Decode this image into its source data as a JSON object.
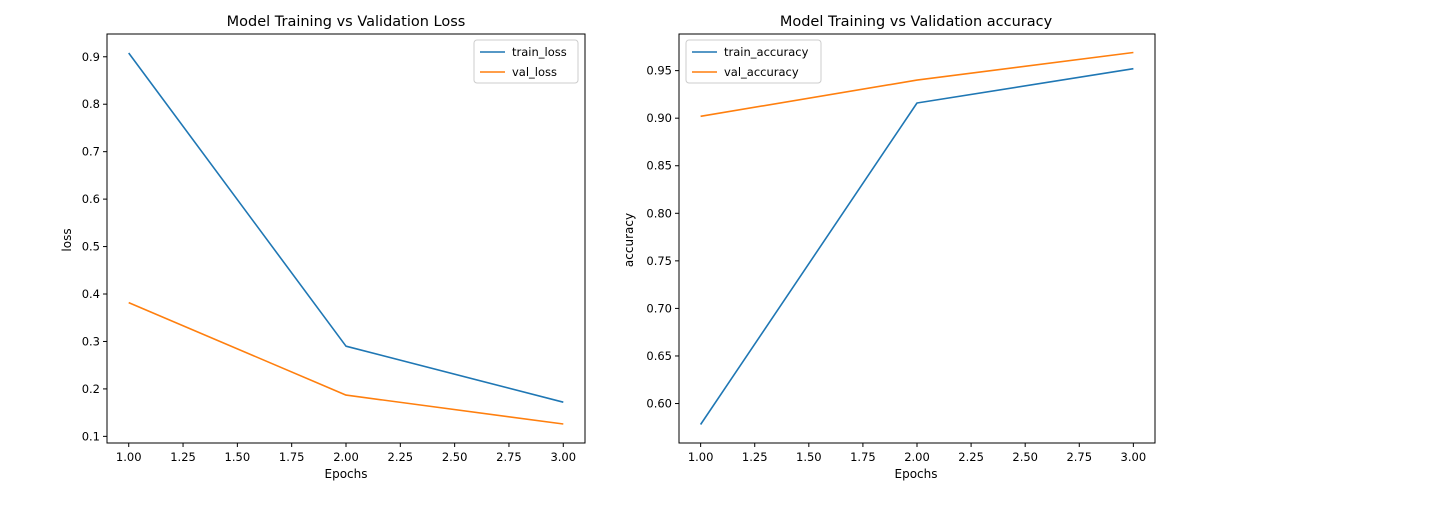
{
  "chart_data": [
    {
      "type": "line",
      "title": "Model Training vs Validation Loss",
      "xlabel": "Epochs",
      "ylabel": "loss",
      "x": [
        1.0,
        2.0,
        3.0
      ],
      "series": [
        {
          "name": "train_loss",
          "color": "#1f77b4",
          "values": [
            0.908,
            0.29,
            0.172
          ]
        },
        {
          "name": "val_loss",
          "color": "#ff7f0e",
          "values": [
            0.382,
            0.187,
            0.126
          ]
        }
      ],
      "xlim": [
        0.9,
        3.1
      ],
      "ylim": [
        0.086,
        0.948
      ],
      "xticks": [
        1.0,
        1.25,
        1.5,
        1.75,
        2.0,
        2.25,
        2.5,
        2.75,
        3.0
      ],
      "xtick_labels": [
        "1.00",
        "1.25",
        "1.50",
        "1.75",
        "2.00",
        "2.25",
        "2.50",
        "2.75",
        "3.00"
      ],
      "yticks": [
        0.1,
        0.2,
        0.3,
        0.4,
        0.5,
        0.6,
        0.7,
        0.8,
        0.9
      ],
      "ytick_labels": [
        "0.1",
        "0.2",
        "0.3",
        "0.4",
        "0.5",
        "0.6",
        "0.7",
        "0.8",
        "0.9"
      ],
      "grid": false,
      "legend": "upper right"
    },
    {
      "type": "line",
      "title": "Model Training vs Validation accuracy",
      "xlabel": "Epochs",
      "ylabel": "accuracy",
      "x": [
        1.0,
        2.0,
        3.0
      ],
      "series": [
        {
          "name": "train_accuracy",
          "color": "#1f77b4",
          "values": [
            0.578,
            0.916,
            0.952
          ]
        },
        {
          "name": "val_accuracy",
          "color": "#ff7f0e",
          "values": [
            0.902,
            0.94,
            0.969
          ]
        }
      ],
      "xlim": [
        0.9,
        3.1
      ],
      "ylim": [
        0.5585,
        0.9885
      ],
      "xticks": [
        1.0,
        1.25,
        1.5,
        1.75,
        2.0,
        2.25,
        2.5,
        2.75,
        3.0
      ],
      "xtick_labels": [
        "1.00",
        "1.25",
        "1.50",
        "1.75",
        "2.00",
        "2.25",
        "2.50",
        "2.75",
        "3.00"
      ],
      "yticks": [
        0.6,
        0.65,
        0.7,
        0.75,
        0.8,
        0.85,
        0.9,
        0.95
      ],
      "ytick_labels": [
        "0.60",
        "0.65",
        "0.70",
        "0.75",
        "0.80",
        "0.85",
        "0.90",
        "0.95"
      ],
      "grid": false,
      "legend": "upper left"
    }
  ]
}
